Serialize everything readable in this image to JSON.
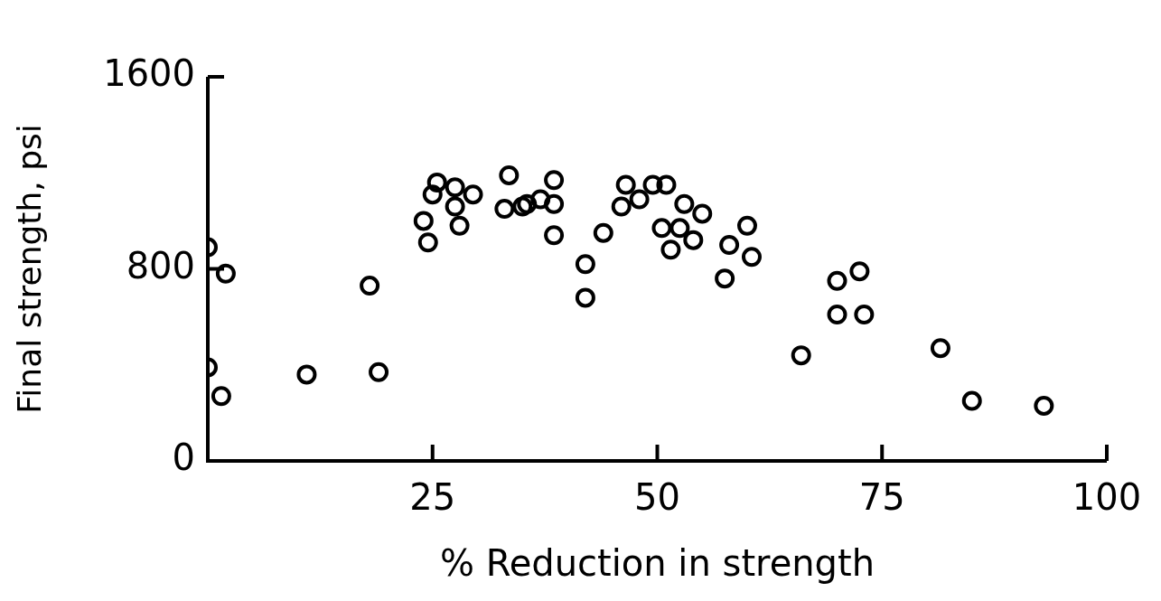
{
  "chart_data": {
    "type": "scatter",
    "xlabel": "% Reduction in strength",
    "ylabel": "Final strength, psi",
    "xlim": [
      0,
      100
    ],
    "xticks": [
      25,
      50,
      75,
      100
    ],
    "ylim": [
      0,
      1600
    ],
    "yticks": [
      0,
      800,
      1600
    ],
    "grid": false,
    "legend": false,
    "marker": "circle",
    "series": [
      {
        "color": "#000000",
        "x": [
          0,
          2,
          0,
          1.5,
          11,
          18,
          19,
          24,
          24.5,
          25.5,
          25,
          27.5,
          27.5,
          28,
          29.5,
          33.5,
          33,
          35,
          35.5,
          37,
          38.5,
          38.5,
          38.5,
          42,
          42,
          44,
          46,
          46.5,
          48,
          49.5,
          51,
          50.5,
          51.5,
          52.5,
          53,
          54,
          55,
          57.5,
          58,
          60,
          60.5,
          66,
          70,
          70,
          72.5,
          73,
          81.5,
          85,
          93
        ],
        "values": [
          890,
          780,
          390,
          270,
          360,
          730,
          370,
          1000,
          910,
          1160,
          1110,
          1140,
          1060,
          980,
          1110,
          1190,
          1050,
          1060,
          1070,
          1090,
          1170,
          1070,
          940,
          820,
          680,
          950,
          1060,
          1150,
          1090,
          1150,
          1150,
          970,
          880,
          970,
          1070,
          920,
          1030,
          760,
          900,
          980,
          850,
          440,
          610,
          750,
          790,
          610,
          470,
          250,
          230
        ]
      }
    ]
  }
}
